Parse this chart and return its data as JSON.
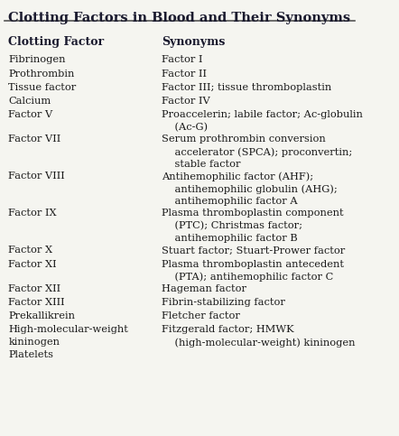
{
  "title": "Clotting Factors in Blood and Their Synonyms",
  "col1_header": "Clotting Factor",
  "col2_header": "Synonyms",
  "bg_color": "#f5f5f0",
  "title_color": "#1a1a2e",
  "header_color": "#1a1a2e",
  "text_color": "#1a1a1a",
  "line_color": "#555555",
  "rows": [
    {
      "factor": [
        "Fibrinogen"
      ],
      "synonyms": [
        "Factor I"
      ]
    },
    {
      "factor": [
        "Prothrombin"
      ],
      "synonyms": [
        "Factor II"
      ]
    },
    {
      "factor": [
        "Tissue factor"
      ],
      "synonyms": [
        "Factor III; tissue thromboplastin"
      ]
    },
    {
      "factor": [
        "Calcium"
      ],
      "synonyms": [
        "Factor IV"
      ]
    },
    {
      "factor": [
        "Factor V"
      ],
      "synonyms": [
        "Proaccelerin; labile factor; Ac-globulin",
        "    (Ac-G)"
      ]
    },
    {
      "factor": [
        "Factor VII"
      ],
      "synonyms": [
        "Serum prothrombin conversion",
        "    accelerator (SPCA); proconvertin;",
        "    stable factor"
      ]
    },
    {
      "factor": [
        "Factor VIII"
      ],
      "synonyms": [
        "Antihemophilic factor (AHF);",
        "    antihemophilic globulin (AHG);",
        "    antihemophilic factor A"
      ]
    },
    {
      "factor": [
        "Factor IX"
      ],
      "synonyms": [
        "Plasma thromboplastin component",
        "    (PTC); Christmas factor;",
        "    antihemophilic factor B"
      ]
    },
    {
      "factor": [
        "Factor X"
      ],
      "synonyms": [
        "Stuart factor; Stuart-Prower factor"
      ]
    },
    {
      "factor": [
        "Factor XI"
      ],
      "synonyms": [
        "Plasma thromboplastin antecedent",
        "    (PTA); antihemophilic factor C"
      ]
    },
    {
      "factor": [
        "Factor XII"
      ],
      "synonyms": [
        "Hageman factor"
      ]
    },
    {
      "factor": [
        "Factor XIII"
      ],
      "synonyms": [
        "Fibrin-stabilizing factor"
      ]
    },
    {
      "factor": [
        "Prekallikrein"
      ],
      "synonyms": [
        "Fletcher factor"
      ]
    },
    {
      "factor": [
        "High-molecular-weight",
        "    kininogen"
      ],
      "synonyms": [
        "Fitzgerald factor; HMWK",
        "    (high-molecular-weight) kininogen"
      ]
    },
    {
      "factor": [
        "Platelets"
      ],
      "synonyms": [
        ""
      ]
    }
  ]
}
